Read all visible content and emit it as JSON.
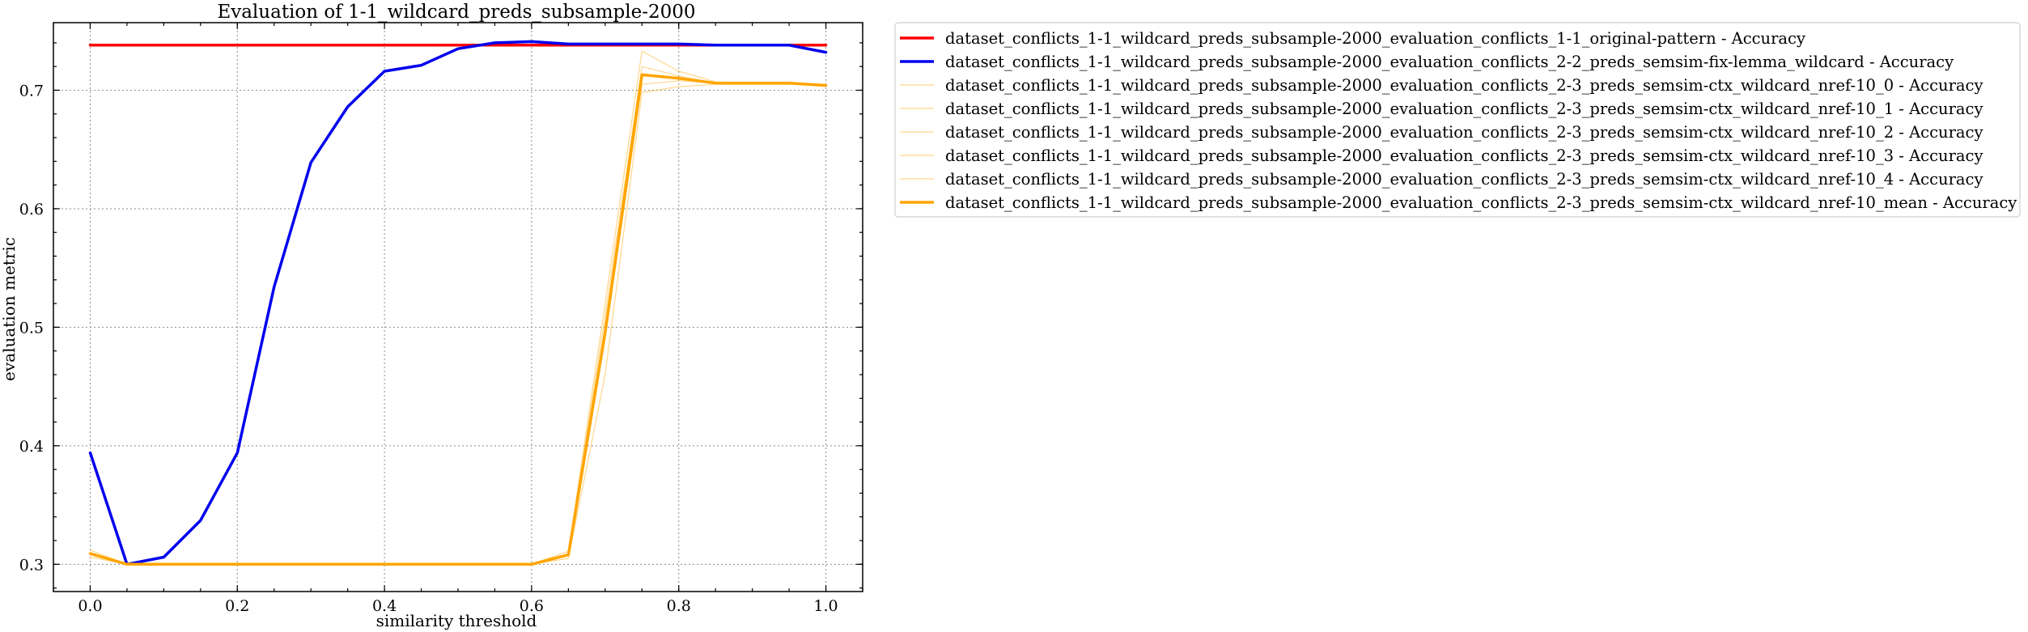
{
  "chart_data": {
    "type": "line",
    "title": "Evaluation of 1-1_wildcard_preds_subsample-2000",
    "xlabel": "similarity threshold",
    "ylabel": "evaluation metric",
    "xlim": [
      -0.05,
      1.05
    ],
    "ylim": [
      0.277,
      0.757
    ],
    "xticks": [
      0.0,
      0.2,
      0.4,
      0.6,
      0.8,
      1.0
    ],
    "xtick_labels": [
      "0.0",
      "0.2",
      "0.4",
      "0.6",
      "0.8",
      "1.0"
    ],
    "yticks": [
      0.3,
      0.4,
      0.5,
      0.6,
      0.7
    ],
    "ytick_labels": [
      "0.3",
      "0.4",
      "0.5",
      "0.6",
      "0.7"
    ],
    "grid": true,
    "legend_position": "outside-right-top",
    "x": [
      0.0,
      0.05,
      0.1,
      0.15,
      0.2,
      0.25,
      0.3,
      0.35,
      0.4,
      0.45,
      0.5,
      0.55,
      0.6,
      0.65,
      0.7,
      0.75,
      0.8,
      0.85,
      0.9,
      0.95,
      1.0
    ],
    "series": [
      {
        "name": "dataset_conflicts_1-1_wildcard_preds_subsample-2000_evaluation_conflicts_1-1_original-pattern - Accuracy",
        "color": "#ff0000",
        "width": 3.5,
        "opacity": 1,
        "values": [
          0.738,
          0.738,
          0.738,
          0.738,
          0.738,
          0.738,
          0.738,
          0.738,
          0.738,
          0.738,
          0.738,
          0.738,
          0.738,
          0.738,
          0.738,
          0.738,
          0.738,
          0.738,
          0.738,
          0.738,
          0.738
        ]
      },
      {
        "name": "dataset_conflicts_1-1_wildcard_preds_subsample-2000_evaluation_conflicts_2-2_preds_semsim-fix-lemma_wildcard - Accuracy",
        "color": "#0000ee",
        "width": 3.5,
        "opacity": 1,
        "values": [
          0.394,
          0.3,
          0.306,
          0.337,
          0.394,
          0.534,
          0.639,
          0.686,
          0.716,
          0.721,
          0.735,
          0.74,
          0.741,
          0.739,
          0.739,
          0.739,
          0.739,
          0.738,
          0.738,
          0.738,
          0.732
        ]
      },
      {
        "name": "dataset_conflicts_1-1_wildcard_preds_subsample-2000_evaluation_conflicts_2-3_preds_semsim-ctx_wildcard_nref-10_0 - Accuracy",
        "color": "#ffa500",
        "width": 1.2,
        "opacity": 0.45,
        "values": [
          0.312,
          0.3,
          0.3,
          0.3,
          0.3,
          0.3,
          0.3,
          0.3,
          0.3,
          0.3,
          0.3,
          0.3,
          0.3,
          0.311,
          0.52,
          0.733,
          0.716,
          0.707,
          0.706,
          0.706,
          0.705
        ]
      },
      {
        "name": "dataset_conflicts_1-1_wildcard_preds_subsample-2000_evaluation_conflicts_2-3_preds_semsim-ctx_wildcard_nref-10_1 - Accuracy",
        "color": "#ffa500",
        "width": 1.2,
        "opacity": 0.45,
        "values": [
          0.306,
          0.3,
          0.3,
          0.3,
          0.3,
          0.3,
          0.3,
          0.3,
          0.3,
          0.3,
          0.3,
          0.3,
          0.3,
          0.305,
          0.46,
          0.698,
          0.703,
          0.705,
          0.705,
          0.705,
          0.704
        ]
      },
      {
        "name": "dataset_conflicts_1-1_wildcard_preds_subsample-2000_evaluation_conflicts_2-3_preds_semsim-ctx_wildcard_nref-10_2 - Accuracy",
        "color": "#ffa500",
        "width": 1.2,
        "opacity": 0.45,
        "values": [
          0.309,
          0.3,
          0.3,
          0.3,
          0.3,
          0.3,
          0.3,
          0.3,
          0.3,
          0.3,
          0.3,
          0.3,
          0.3,
          0.308,
          0.5,
          0.712,
          0.711,
          0.706,
          0.706,
          0.706,
          0.705
        ]
      },
      {
        "name": "dataset_conflicts_1-1_wildcard_preds_subsample-2000_evaluation_conflicts_2-3_preds_semsim-ctx_wildcard_nref-10_3 - Accuracy",
        "color": "#ffa500",
        "width": 1.2,
        "opacity": 0.45,
        "values": [
          0.31,
          0.3,
          0.3,
          0.3,
          0.3,
          0.3,
          0.3,
          0.3,
          0.3,
          0.3,
          0.3,
          0.3,
          0.3,
          0.309,
          0.51,
          0.72,
          0.712,
          0.706,
          0.706,
          0.706,
          0.704
        ]
      },
      {
        "name": "dataset_conflicts_1-1_wildcard_preds_subsample-2000_evaluation_conflicts_2-3_preds_semsim-ctx_wildcard_nref-10_4 - Accuracy",
        "color": "#ffa500",
        "width": 1.2,
        "opacity": 0.45,
        "values": [
          0.308,
          0.3,
          0.3,
          0.3,
          0.3,
          0.3,
          0.3,
          0.3,
          0.3,
          0.3,
          0.3,
          0.3,
          0.3,
          0.308,
          0.49,
          0.705,
          0.708,
          0.706,
          0.706,
          0.706,
          0.704
        ]
      },
      {
        "name": "dataset_conflicts_1-1_wildcard_preds_subsample-2000_evaluation_conflicts_2-3_preds_semsim-ctx_wildcard_nref-10_mean - Accuracy",
        "color": "#ffa500",
        "width": 3.5,
        "opacity": 1,
        "values": [
          0.309,
          0.3,
          0.3,
          0.3,
          0.3,
          0.3,
          0.3,
          0.3,
          0.3,
          0.3,
          0.3,
          0.3,
          0.3,
          0.308,
          0.496,
          0.713,
          0.71,
          0.706,
          0.706,
          0.706,
          0.704
        ]
      }
    ]
  }
}
